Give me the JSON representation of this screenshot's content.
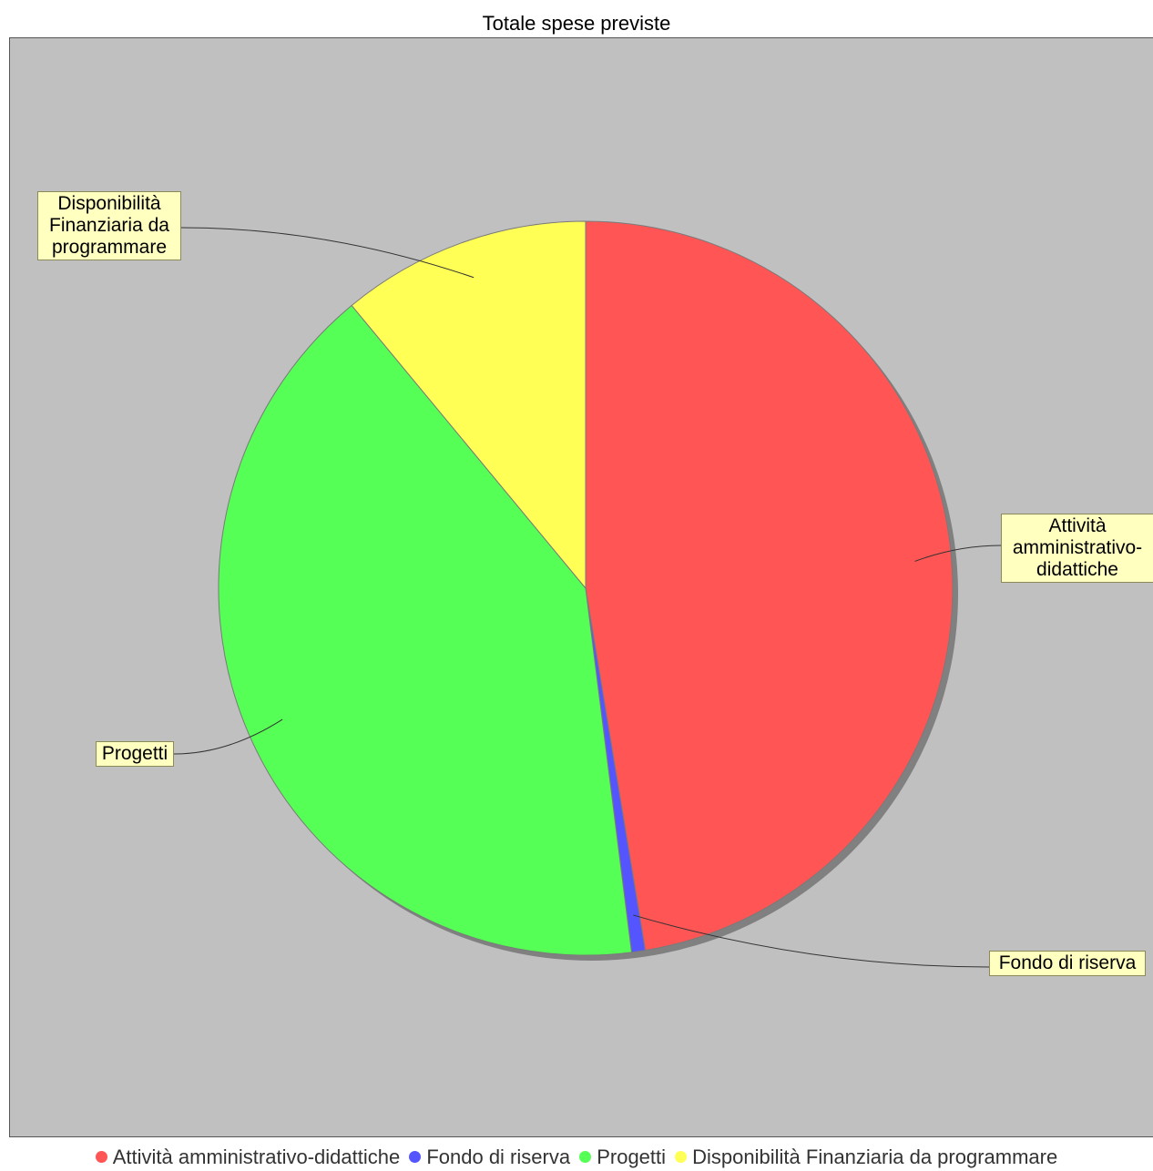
{
  "chart_data": {
    "type": "pie",
    "title": "Totale spese previste",
    "legend_position": "bottom",
    "slices": [
      {
        "label": "Attività amministrativo-didattiche",
        "callout": "Attività\namministrativo-\ndidattiche",
        "value": 47.4,
        "color": "#ff5555"
      },
      {
        "label": "Fondo di riserva",
        "callout": "Fondo di riserva",
        "value": 0.6,
        "color": "#5555ff"
      },
      {
        "label": "Progetti",
        "callout": "Progetti",
        "value": 41.0,
        "color": "#55ff55"
      },
      {
        "label": "Disponibilità Finanziaria da programmare",
        "callout": "Disponibilità\nFinanziaria da\nprogrammare",
        "value": 11.0,
        "color": "#ffff55"
      }
    ]
  },
  "colors": {
    "plot_background": "#c0c0c0",
    "label_background": "#ffffc0"
  }
}
